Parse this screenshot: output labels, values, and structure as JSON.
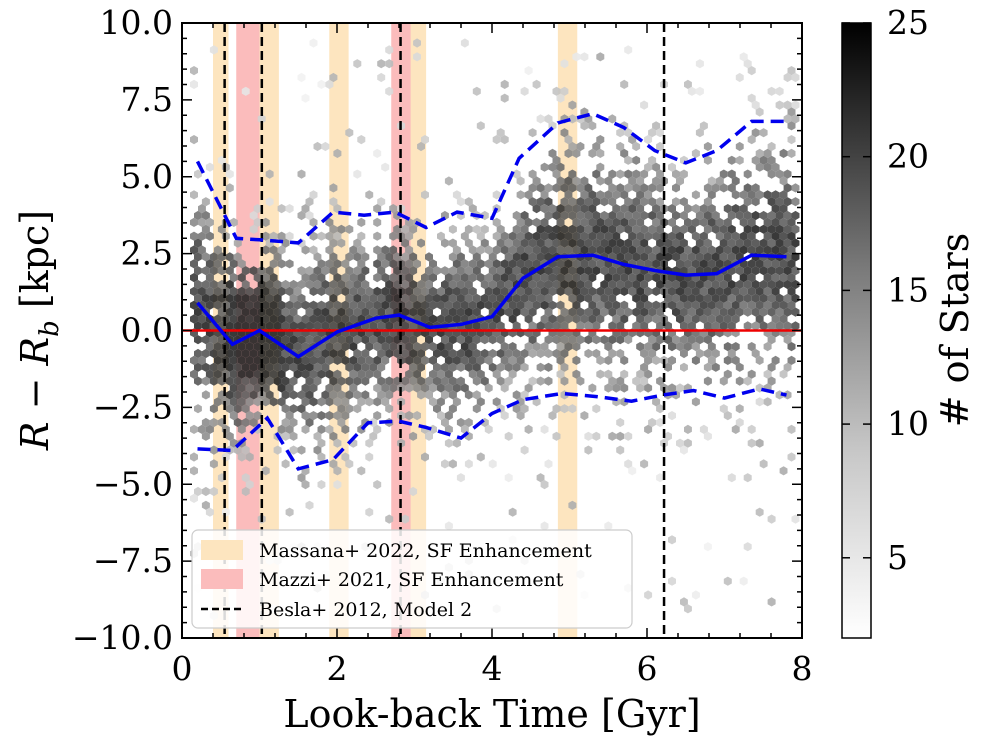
{
  "chart_data": {
    "type": "hexbin-scatter",
    "xlabel": "Look-back Time [Gyr]",
    "ylabel": "R − R",
    "ylabel_sub": "b",
    "ylabel_unit": " [kpc]",
    "xlim": [
      0,
      8
    ],
    "ylim": [
      -10,
      10
    ],
    "x_ticks": [
      0,
      2,
      4,
      6,
      8
    ],
    "x_tick_labels": [
      "0",
      "2",
      "4",
      "6",
      "8"
    ],
    "y_ticks": [
      -10,
      -7.5,
      -5,
      -2.5,
      0,
      2.5,
      5,
      7.5,
      10
    ],
    "y_tick_labels": [
      "−10.0",
      "−7.5",
      "−5.0",
      "−2.5",
      "0.0",
      "2.5",
      "5.0",
      "7.5",
      "10.0"
    ],
    "colorbar": {
      "label": "# of Stars",
      "range": [
        2,
        25
      ],
      "ticks": [
        5,
        10,
        15,
        20,
        25
      ],
      "tick_labels": [
        "5",
        "10",
        "15",
        "20",
        "25"
      ]
    },
    "massana_bands": [
      [
        0.4,
        0.6
      ],
      [
        0.95,
        1.25
      ],
      [
        1.9,
        2.15
      ],
      [
        2.75,
        3.15
      ],
      [
        4.85,
        5.1
      ]
    ],
    "mazzi_bands": [
      [
        0.7,
        1.0
      ],
      [
        2.7,
        2.95
      ]
    ],
    "besla_lines": [
      0.55,
      1.03,
      2.82,
      6.22
    ],
    "reference_line_y": 0,
    "median": {
      "x": [
        0.2,
        0.65,
        1.0,
        1.5,
        2.0,
        2.5,
        2.8,
        3.2,
        3.6,
        4.0,
        4.4,
        4.85,
        5.3,
        5.7,
        6.1,
        6.5,
        6.9,
        7.35,
        7.8
      ],
      "y": [
        0.9,
        -0.45,
        0.0,
        -0.85,
        -0.05,
        0.4,
        0.5,
        0.1,
        0.2,
        0.45,
        1.7,
        2.4,
        2.45,
        2.15,
        1.95,
        1.8,
        1.85,
        2.45,
        2.4
      ]
    },
    "upper": {
      "x": [
        0.2,
        0.7,
        1.0,
        1.5,
        1.95,
        2.35,
        2.75,
        3.15,
        3.55,
        4.0,
        4.35,
        4.85,
        5.3,
        5.7,
        6.1,
        6.5,
        6.9,
        7.35,
        7.8
      ],
      "y": [
        5.5,
        3.0,
        2.95,
        2.85,
        3.85,
        3.75,
        3.85,
        3.35,
        3.85,
        3.65,
        5.6,
        6.75,
        7.05,
        6.6,
        5.85,
        5.45,
        5.85,
        6.8,
        6.8
      ]
    },
    "lower": {
      "x": [
        0.2,
        0.65,
        1.1,
        1.5,
        1.95,
        2.4,
        2.8,
        3.15,
        3.6,
        4.0,
        4.4,
        4.9,
        5.35,
        5.8,
        6.2,
        6.6,
        7.0,
        7.45,
        7.8
      ],
      "y": [
        -3.85,
        -3.9,
        -2.85,
        -4.5,
        -4.2,
        -3.0,
        -2.95,
        -3.15,
        -3.5,
        -2.7,
        -2.25,
        -2.05,
        -2.15,
        -2.3,
        -2.1,
        -1.95,
        -2.2,
        -1.9,
        -2.1
      ]
    },
    "legend": {
      "position": "lower-left",
      "entries": [
        {
          "label": "Massana+ 2022, SF Enhancement",
          "style": "band",
          "color": "#fde5bf"
        },
        {
          "label": "Mazzi+ 2021, SF Enhancement",
          "style": "band",
          "color": "#fbbcbc"
        },
        {
          "label": "Besla+ 2012, Model 2",
          "style": "dashed",
          "color": "#000000"
        }
      ]
    },
    "colors": {
      "median_line": "#0000ee",
      "percentile_lines": "#0000ee",
      "reference_line": "#ee0000",
      "massana_band": "#fde5bf",
      "mazzi_band": "#fbbcbc",
      "besla_line": "#000000"
    }
  }
}
